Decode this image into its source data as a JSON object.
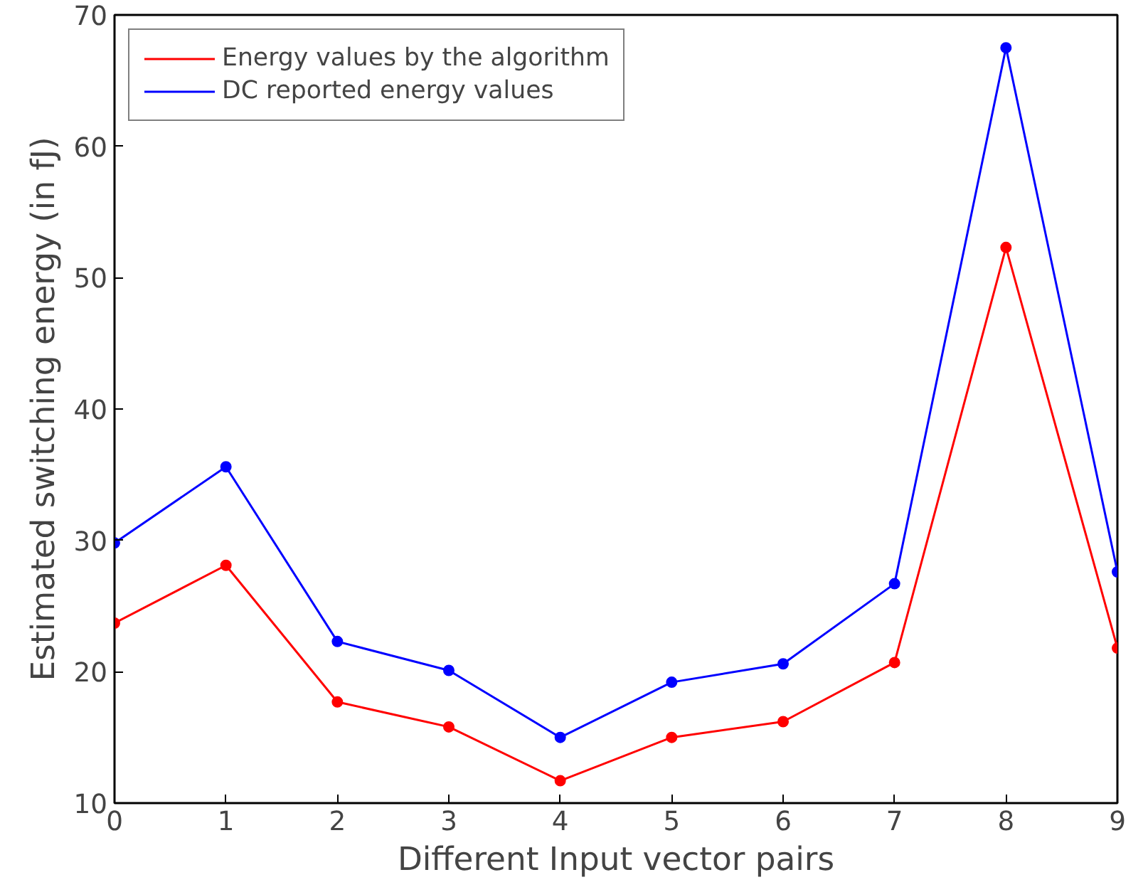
{
  "chart_data": {
    "type": "line",
    "xlabel": "Different Input vector pairs",
    "ylabel": "Estimated switching energy (in fJ)",
    "x": [
      0,
      1,
      2,
      3,
      4,
      5,
      6,
      7,
      8,
      9
    ],
    "series": [
      {
        "name": "Energy values by the algorithm",
        "color": "#ff0000",
        "values": [
          23.7,
          28.1,
          17.7,
          15.8,
          11.7,
          15.0,
          16.2,
          20.7,
          52.3,
          21.8
        ]
      },
      {
        "name": "DC reported energy values",
        "color": "#0000ff",
        "values": [
          29.8,
          35.6,
          22.3,
          20.1,
          15.0,
          19.2,
          20.6,
          26.7,
          67.5,
          27.6
        ]
      }
    ],
    "xlim": [
      0,
      9
    ],
    "ylim": [
      10,
      70
    ],
    "xticks": [
      0,
      1,
      2,
      3,
      4,
      5,
      6,
      7,
      8,
      9
    ],
    "yticks": [
      10,
      20,
      30,
      40,
      50,
      60,
      70
    ],
    "grid": false,
    "legend": "top left",
    "marker": "circle",
    "line_style": "solid"
  }
}
